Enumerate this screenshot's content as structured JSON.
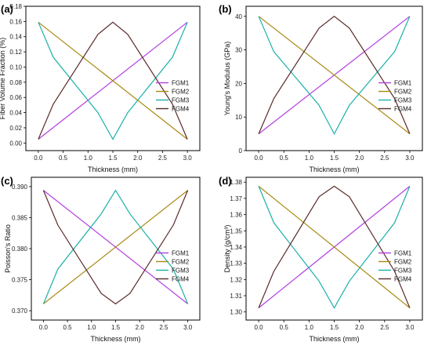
{
  "chart_data": [
    {
      "type": "line",
      "panel": "(a)",
      "xlabel": "Thickness (mm)",
      "ylabel": "Fiber Volume Fraction (%)",
      "xlim": [
        -0.25,
        3.25
      ],
      "ylim": [
        -0.01,
        0.18
      ],
      "xticks": [
        0.0,
        0.5,
        1.0,
        1.5,
        2.0,
        2.5,
        3.0
      ],
      "xtick_labels": [
        "0.0",
        "0.5",
        "1.0",
        "1.5",
        "2.0",
        "2.5",
        "3.0"
      ],
      "yticks": [
        0.0,
        0.02,
        0.04,
        0.06,
        0.08,
        0.1,
        0.12,
        0.14,
        0.16,
        0.18
      ],
      "ytick_labels": [
        "0.00",
        "0.02",
        "0.04",
        "0.06",
        "0.08",
        "0.10",
        "0.12",
        "0.14",
        "0.16",
        "0.18"
      ],
      "legend_position": "right",
      "series": [
        {
          "name": "FGM1",
          "color": "#b23ee0",
          "x": [
            0,
            3
          ],
          "y": [
            0.005,
            0.159
          ]
        },
        {
          "name": "FGM2",
          "color": "#a88a10",
          "x": [
            0,
            3
          ],
          "y": [
            0.159,
            0.005
          ]
        },
        {
          "name": "FGM3",
          "color": "#1bb0a8",
          "x": [
            0,
            0.3,
            1.2,
            1.5,
            1.8,
            2.7,
            3.0
          ],
          "y": [
            0.159,
            0.113,
            0.04,
            0.005,
            0.04,
            0.113,
            0.159
          ]
        },
        {
          "name": "FGM4",
          "color": "#5a2a2a",
          "x": [
            0,
            0.3,
            1.2,
            1.5,
            1.8,
            2.7,
            3.0
          ],
          "y": [
            0.005,
            0.051,
            0.143,
            0.159,
            0.143,
            0.051,
            0.005
          ]
        }
      ]
    },
    {
      "type": "line",
      "panel": "(b)",
      "xlabel": "Thickness (mm)",
      "ylabel": "Young's Modulus (GPa)",
      "xlim": [
        -0.25,
        3.25
      ],
      "ylim": [
        0,
        43
      ],
      "xticks": [
        0.0,
        0.5,
        1.0,
        1.5,
        2.0,
        2.5,
        3.0
      ],
      "xtick_labels": [
        "0.0",
        "0.5",
        "1.0",
        "1.5",
        "2.0",
        "2.5",
        "3.0"
      ],
      "yticks": [
        0,
        10,
        20,
        30,
        40
      ],
      "ytick_labels": [
        "0",
        "10",
        "20",
        "30",
        "40"
      ],
      "legend_position": "right",
      "series": [
        {
          "name": "FGM1",
          "color": "#b23ee0",
          "x": [
            0,
            3
          ],
          "y": [
            5,
            40
          ]
        },
        {
          "name": "FGM2",
          "color": "#a88a10",
          "x": [
            0,
            3
          ],
          "y": [
            40,
            5
          ]
        },
        {
          "name": "FGM3",
          "color": "#1bb0a8",
          "x": [
            0,
            0.3,
            1.2,
            1.5,
            1.8,
            2.7,
            3.0
          ],
          "y": [
            40,
            29.5,
            13.5,
            5,
            13.5,
            29.5,
            40
          ]
        },
        {
          "name": "FGM4",
          "color": "#5a2a2a",
          "x": [
            0,
            0.3,
            1.2,
            1.5,
            1.8,
            2.7,
            3.0
          ],
          "y": [
            5,
            15.5,
            36.5,
            40,
            36.5,
            15.5,
            5
          ]
        }
      ]
    },
    {
      "type": "line",
      "panel": "(c)",
      "xlabel": "Thickness (mm)",
      "ylabel": "Poisson's Ratio",
      "xlim": [
        -0.25,
        3.25
      ],
      "ylim": [
        0.3685,
        0.3915
      ],
      "xticks": [
        0.0,
        0.5,
        1.0,
        1.5,
        2.0,
        2.5,
        3.0
      ],
      "xtick_labels": [
        "0.0",
        "0.5",
        "1.0",
        "1.5",
        "2.0",
        "2.5",
        "3.0"
      ],
      "yticks": [
        0.37,
        0.375,
        0.38,
        0.385,
        0.39
      ],
      "ytick_labels": [
        "0.370",
        "0.375",
        "0.380",
        "0.385",
        "0.390"
      ],
      "legend_position": "right",
      "series": [
        {
          "name": "FGM1",
          "color": "#b23ee0",
          "x": [
            0,
            3
          ],
          "y": [
            0.3894,
            0.3711
          ]
        },
        {
          "name": "FGM2",
          "color": "#a88a10",
          "x": [
            0,
            3
          ],
          "y": [
            0.3711,
            0.3894
          ]
        },
        {
          "name": "FGM3",
          "color": "#1bb0a8",
          "x": [
            0,
            0.3,
            1.2,
            1.5,
            1.8,
            2.7,
            3.0
          ],
          "y": [
            0.3711,
            0.3767,
            0.3856,
            0.3894,
            0.3856,
            0.3767,
            0.3711
          ]
        },
        {
          "name": "FGM4",
          "color": "#5a2a2a",
          "x": [
            0,
            0.3,
            1.2,
            1.5,
            1.8,
            2.7,
            3.0
          ],
          "y": [
            0.3894,
            0.3838,
            0.3728,
            0.3711,
            0.3728,
            0.3838,
            0.3894
          ]
        }
      ]
    },
    {
      "type": "line",
      "panel": "(d)",
      "xlabel": "Thickness (mm)",
      "ylabel": "Density (g/cm³)",
      "xlim": [
        -0.25,
        3.25
      ],
      "ylim": [
        1.295,
        1.383
      ],
      "xticks": [
        0.0,
        0.5,
        1.0,
        1.5,
        2.0,
        2.5,
        3.0
      ],
      "xtick_labels": [
        "0.0",
        "0.5",
        "1.0",
        "1.5",
        "2.0",
        "2.5",
        "3.0"
      ],
      "yticks": [
        1.3,
        1.31,
        1.32,
        1.33,
        1.34,
        1.35,
        1.36,
        1.37,
        1.38
      ],
      "ytick_labels": [
        "1.30",
        "1.31",
        "1.32",
        "1.33",
        "1.34",
        "1.35",
        "1.36",
        "1.37",
        "1.38"
      ],
      "legend_position": "right",
      "series": [
        {
          "name": "FGM1",
          "color": "#b23ee0",
          "x": [
            0,
            3
          ],
          "y": [
            1.3025,
            1.3775
          ]
        },
        {
          "name": "FGM2",
          "color": "#a88a10",
          "x": [
            0,
            3
          ],
          "y": [
            1.3775,
            1.3025
          ]
        },
        {
          "name": "FGM3",
          "color": "#1bb0a8",
          "x": [
            0,
            0.3,
            1.2,
            1.5,
            1.8,
            2.7,
            3.0
          ],
          "y": [
            1.3775,
            1.355,
            1.319,
            1.3025,
            1.319,
            1.355,
            1.3775
          ]
        },
        {
          "name": "FGM4",
          "color": "#5a2a2a",
          "x": [
            0,
            0.3,
            1.2,
            1.5,
            1.8,
            2.7,
            3.0
          ],
          "y": [
            1.3025,
            1.325,
            1.371,
            1.3775,
            1.371,
            1.325,
            1.3025
          ]
        }
      ]
    }
  ]
}
